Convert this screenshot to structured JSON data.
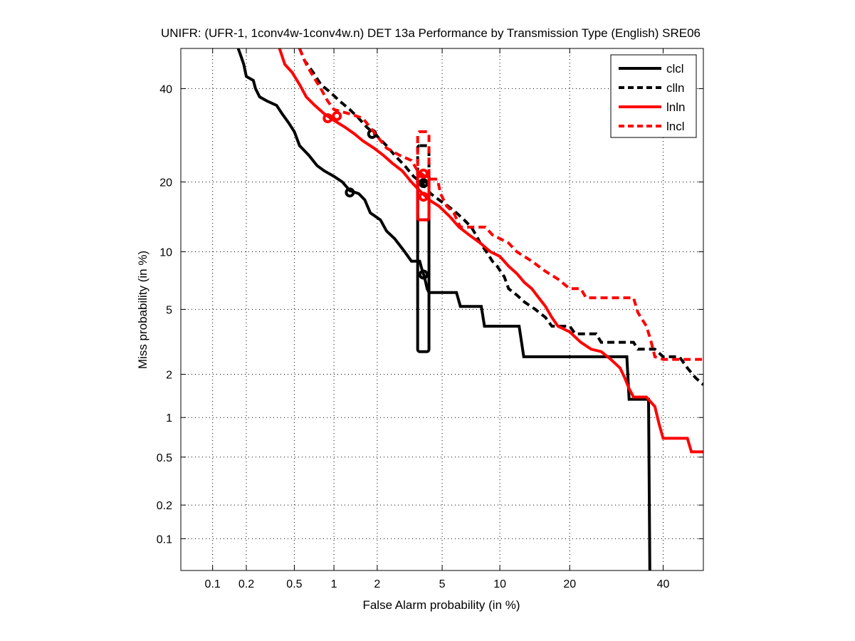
{
  "chart_data": {
    "type": "line",
    "title": "UNIFR: (UFR-1, 1conv4w-1conv4w.n) DET 13a Performance by Transmission Type (English) SRE06",
    "xlabel": "False Alarm probability (in %)",
    "ylabel": "Miss probability (in %)",
    "xscale": "probit",
    "yscale": "probit",
    "xlim": [
      0.05,
      50
    ],
    "ylim": [
      0.05,
      50
    ],
    "grid": true,
    "legend_position": "top-right",
    "x_ticks": [
      0.1,
      0.2,
      0.5,
      1,
      2,
      5,
      10,
      20,
      40
    ],
    "x_tick_labels": [
      "0.1",
      "0.2",
      "0.5",
      "1",
      "2",
      "5",
      "10",
      "20",
      "40"
    ],
    "y_ticks": [
      0.1,
      0.2,
      0.5,
      1,
      2,
      5,
      10,
      20,
      40
    ],
    "y_tick_labels": [
      "0.1",
      "0.2",
      "0.5",
      "1",
      "2",
      "5",
      "10",
      "20",
      "40"
    ],
    "series": [
      {
        "name": "clcl",
        "color": "#000000",
        "style": "solid",
        "points": [
          [
            0.17,
            50
          ],
          [
            0.18,
            48
          ],
          [
            0.19,
            46
          ],
          [
            0.2,
            43
          ],
          [
            0.23,
            42
          ],
          [
            0.24,
            40
          ],
          [
            0.26,
            38
          ],
          [
            0.3,
            37
          ],
          [
            0.36,
            36
          ],
          [
            0.4,
            34
          ],
          [
            0.45,
            32
          ],
          [
            0.5,
            30
          ],
          [
            0.55,
            27
          ],
          [
            0.65,
            25
          ],
          [
            0.75,
            23
          ],
          [
            0.85,
            22
          ],
          [
            1.0,
            21
          ],
          [
            1.15,
            20
          ],
          [
            1.3,
            18.5
          ],
          [
            1.5,
            18
          ],
          [
            1.65,
            17
          ],
          [
            1.8,
            15
          ],
          [
            2.1,
            14
          ],
          [
            2.3,
            12.5
          ],
          [
            2.6,
            11.5
          ],
          [
            3.0,
            10
          ],
          [
            3.3,
            9
          ],
          [
            3.7,
            9
          ],
          [
            3.85,
            8
          ],
          [
            3.95,
            7.5
          ],
          [
            4.1,
            6.5
          ],
          [
            4.2,
            6.2
          ],
          [
            6.0,
            6.2
          ],
          [
            6.3,
            5.2
          ],
          [
            8.1,
            5.2
          ],
          [
            8.4,
            4.0
          ],
          [
            12.3,
            4.0
          ],
          [
            12.9,
            2.6
          ],
          [
            31.5,
            2.6
          ],
          [
            32.0,
            1.35
          ],
          [
            36.5,
            1.35
          ],
          [
            36.8,
            0.05
          ]
        ],
        "box": {
          "x": [
            3.6,
            4.2
          ],
          "y": [
            2.8,
            20
          ]
        },
        "marker": [
          [
            1.3,
            18.2
          ],
          [
            3.9,
            7.7
          ]
        ]
      },
      {
        "name": "clln",
        "color": "#000000",
        "style": "dashed",
        "points": [
          [
            0.55,
            50
          ],
          [
            0.6,
            47
          ],
          [
            0.7,
            44
          ],
          [
            0.8,
            41
          ],
          [
            0.95,
            39
          ],
          [
            1.1,
            37
          ],
          [
            1.3,
            35
          ],
          [
            1.5,
            33
          ],
          [
            1.7,
            31
          ],
          [
            2.0,
            29
          ],
          [
            2.3,
            27
          ],
          [
            2.6,
            25
          ],
          [
            3.0,
            23
          ],
          [
            3.4,
            21
          ],
          [
            3.9,
            19.5
          ],
          [
            4.3,
            18
          ],
          [
            4.8,
            17
          ],
          [
            5.4,
            16
          ],
          [
            6.0,
            15
          ],
          [
            6.6,
            14
          ],
          [
            7.2,
            13
          ],
          [
            7.6,
            12
          ],
          [
            8.0,
            11
          ],
          [
            8.6,
            10
          ],
          [
            9.2,
            9
          ],
          [
            9.7,
            8.5
          ],
          [
            10.5,
            7.5
          ],
          [
            11,
            6.5
          ],
          [
            12,
            6.0
          ],
          [
            13,
            5.5
          ],
          [
            14.5,
            5.0
          ],
          [
            16,
            4.5
          ],
          [
            17,
            4.0
          ],
          [
            20,
            4.0
          ],
          [
            21,
            3.6
          ],
          [
            25,
            3.6
          ],
          [
            26,
            3.2
          ],
          [
            33,
            3.2
          ],
          [
            34,
            2.9
          ],
          [
            38,
            2.9
          ],
          [
            40,
            2.6
          ],
          [
            44,
            2.6
          ],
          [
            46,
            2.2
          ],
          [
            48,
            1.9
          ],
          [
            50,
            1.7
          ]
        ],
        "box": {
          "x": [
            3.6,
            4.2
          ],
          "y": [
            14,
            27
          ]
        },
        "marker": [
          [
            1.85,
            29.5
          ],
          [
            3.9,
            19.8
          ]
        ]
      },
      {
        "name": "lnln",
        "color": "#ff0000",
        "style": "solid",
        "points": [
          [
            0.38,
            50
          ],
          [
            0.42,
            46
          ],
          [
            0.48,
            44
          ],
          [
            0.55,
            41
          ],
          [
            0.62,
            38
          ],
          [
            0.72,
            36
          ],
          [
            0.85,
            34
          ],
          [
            1.0,
            32.5
          ],
          [
            1.2,
            31
          ],
          [
            1.4,
            29.5
          ],
          [
            1.6,
            28
          ],
          [
            1.9,
            26.5
          ],
          [
            2.2,
            25
          ],
          [
            2.5,
            23.5
          ],
          [
            2.9,
            22
          ],
          [
            3.3,
            20
          ],
          [
            3.7,
            18.5
          ],
          [
            4.2,
            17
          ],
          [
            4.8,
            16
          ],
          [
            5.5,
            14.5
          ],
          [
            6.2,
            13
          ],
          [
            7.0,
            12
          ],
          [
            8.0,
            11
          ],
          [
            9.0,
            10
          ],
          [
            10,
            9.5
          ],
          [
            11,
            8.5
          ],
          [
            12,
            7.8
          ],
          [
            13,
            7.0
          ],
          [
            14,
            6.5
          ],
          [
            15,
            5.8
          ],
          [
            16,
            5.2
          ],
          [
            17,
            4.5
          ],
          [
            18,
            4.0
          ],
          [
            20,
            3.7
          ],
          [
            22,
            3.2
          ],
          [
            24,
            2.9
          ],
          [
            26,
            2.8
          ],
          [
            28,
            2.5
          ],
          [
            30,
            2.2
          ],
          [
            31,
            1.9
          ],
          [
            32,
            1.6
          ],
          [
            33,
            1.4
          ],
          [
            36,
            1.4
          ],
          [
            38,
            1.2
          ],
          [
            39,
            0.9
          ],
          [
            40,
            0.7
          ],
          [
            46,
            0.7
          ],
          [
            47,
            0.55
          ],
          [
            50,
            0.55
          ]
        ],
        "box": {
          "x": [
            3.6,
            4.2
          ],
          "y": [
            14,
            21
          ]
        },
        "marker": [
          [
            0.9,
            33
          ],
          [
            1.05,
            33.5
          ],
          [
            3.9,
            17.5
          ]
        ]
      },
      {
        "name": "lncl",
        "color": "#ff0000",
        "style": "dashed",
        "points": [
          [
            0.55,
            50
          ],
          [
            0.62,
            46
          ],
          [
            0.7,
            43
          ],
          [
            0.8,
            40
          ],
          [
            0.9,
            37
          ],
          [
            1.0,
            35
          ],
          [
            1.3,
            34
          ],
          [
            1.6,
            33
          ],
          [
            2.0,
            29
          ],
          [
            2.3,
            26.5
          ],
          [
            2.8,
            25
          ],
          [
            3.3,
            24
          ],
          [
            3.6,
            22
          ],
          [
            4.2,
            20.5
          ],
          [
            4.7,
            20.5
          ],
          [
            4.9,
            18
          ],
          [
            5.3,
            16
          ],
          [
            5.8,
            15
          ],
          [
            6.3,
            13
          ],
          [
            8.5,
            13
          ],
          [
            9.2,
            12
          ],
          [
            11,
            11
          ],
          [
            12,
            10
          ],
          [
            14,
            9
          ],
          [
            16,
            8
          ],
          [
            18,
            7.3
          ],
          [
            20,
            6.5
          ],
          [
            22,
            6.5
          ],
          [
            23,
            5.8
          ],
          [
            33,
            5.8
          ],
          [
            34,
            4.8
          ],
          [
            36,
            4.0
          ],
          [
            37,
            3.3
          ],
          [
            38,
            2.6
          ],
          [
            40,
            2.5
          ],
          [
            50,
            2.5
          ]
        ],
        "box": {
          "x": [
            3.6,
            4.2
          ],
          "y": [
            14,
            30
          ]
        },
        "marker": [
          [
            3.9,
            21.5
          ]
        ]
      }
    ]
  }
}
